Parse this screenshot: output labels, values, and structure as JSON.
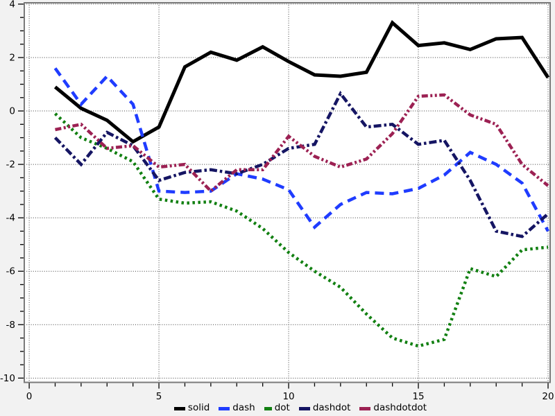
{
  "window": {
    "background": "#f2f2f2",
    "plot_background": "#ffffff",
    "frame_color": "#7a7a7a",
    "grid_color": "#3c3c3c",
    "tick_color": "#000000",
    "label_color": "#000000"
  },
  "chart_data": {
    "type": "line",
    "title": "",
    "xlabel": "",
    "ylabel": "",
    "grid": "dotted-on-major-ticks",
    "legend_position": "bottom-center",
    "xlim": [
      -0.19,
      20.08
    ],
    "ylim": [
      -10.16,
      4.05
    ],
    "x_major_ticks": [
      0,
      5,
      10,
      15,
      20
    ],
    "x_minor_step": 1,
    "y_major_ticks": [
      4,
      2,
      0,
      -2,
      -4,
      -6,
      -8,
      -10
    ],
    "y_minor_step": 0.5,
    "x": [
      1,
      2,
      3,
      4,
      5,
      6,
      7,
      8,
      9,
      10,
      11,
      12,
      13,
      14,
      15,
      16,
      17,
      18,
      19,
      20
    ],
    "series": [
      {
        "name": "solid",
        "color": "#000000",
        "style": "solid",
        "values": [
          0.9,
          0.1,
          -0.35,
          -1.15,
          -0.6,
          1.65,
          2.2,
          1.9,
          2.4,
          1.85,
          1.35,
          1.3,
          1.45,
          3.3,
          2.45,
          2.55,
          2.3,
          2.7,
          2.75,
          1.25
        ]
      },
      {
        "name": "dash",
        "color": "#1f3cff",
        "style": "dash",
        "values": [
          1.6,
          0.25,
          1.3,
          0.25,
          -3.0,
          -3.05,
          -3.0,
          -2.35,
          -2.55,
          -2.95,
          -4.35,
          -3.5,
          -3.05,
          -3.1,
          -2.9,
          -2.4,
          -1.55,
          -2.0,
          -2.7,
          -4.5
        ]
      },
      {
        "name": "dot",
        "color": "#128012",
        "style": "dot",
        "values": [
          -0.1,
          -1.0,
          -1.4,
          -1.9,
          -3.3,
          -3.45,
          -3.4,
          -3.75,
          -4.4,
          -5.3,
          -6.0,
          -6.6,
          -7.6,
          -8.5,
          -8.8,
          -8.55,
          -5.9,
          -6.2,
          -5.2,
          -5.1
        ]
      },
      {
        "name": "dashdot",
        "color": "#151563",
        "style": "dashdot",
        "values": [
          -1.0,
          -2.0,
          -0.8,
          -1.3,
          -2.6,
          -2.3,
          -2.2,
          -2.35,
          -2.0,
          -1.4,
          -1.25,
          0.65,
          -0.6,
          -0.5,
          -1.25,
          -1.1,
          -2.6,
          -4.5,
          -4.7,
          -3.85
        ]
      },
      {
        "name": "dashdotdot",
        "color": "#9c2153",
        "style": "dashdotdot",
        "values": [
          -0.7,
          -0.5,
          -1.4,
          -1.3,
          -2.1,
          -2.0,
          -3.0,
          -2.2,
          -2.2,
          -0.95,
          -1.7,
          -2.1,
          -1.8,
          -0.85,
          0.55,
          0.6,
          -0.15,
          -0.5,
          -2.0,
          -2.8
        ]
      }
    ],
    "legend": [
      "solid",
      "dash",
      "dot",
      "dashdot",
      "dashdotdot"
    ]
  }
}
